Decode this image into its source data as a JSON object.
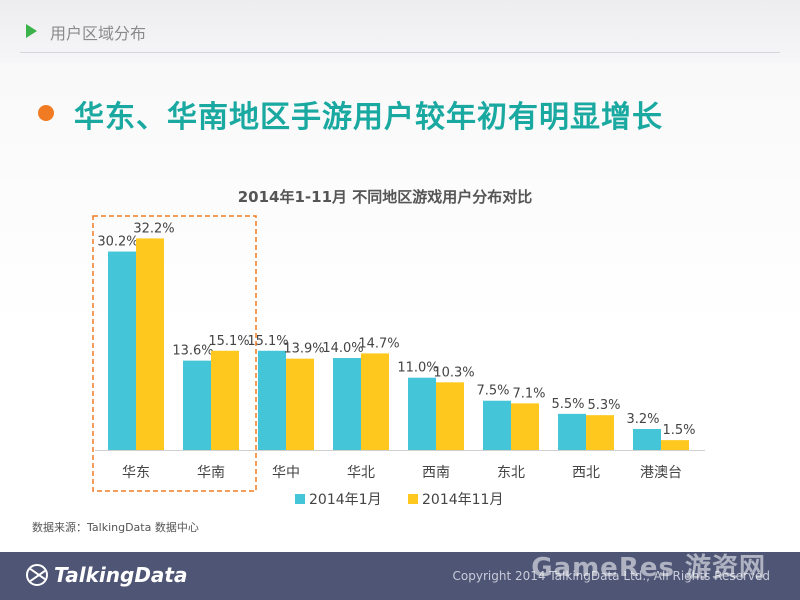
{
  "header": {
    "section_title": "用户区域分布"
  },
  "headline": "华东、华南地区手游用户较年初有明显增长",
  "colors": {
    "series1": "#45c6d8",
    "series2": "#ffc81e",
    "highlight": "#f07b22",
    "headline": "#1aa9a0",
    "footer": "#4e5575"
  },
  "chart_data": {
    "type": "bar",
    "title": "2014年1-11月 不同地区游戏用户分布对比",
    "categories": [
      "华东",
      "华南",
      "华中",
      "华北",
      "西南",
      "东北",
      "西北",
      "港澳台"
    ],
    "series": [
      {
        "name": "2014年1月",
        "values": [
          30.2,
          13.6,
          15.1,
          14.0,
          11.0,
          7.5,
          5.5,
          3.2
        ],
        "labels": [
          "30.2%",
          "13.6%",
          "15.1%",
          "14.0%",
          "11.0%",
          "7.5%",
          "5.5%",
          "3.2%"
        ]
      },
      {
        "name": "2014年11月",
        "values": [
          32.2,
          15.1,
          13.9,
          14.7,
          10.3,
          7.1,
          5.3,
          1.5
        ],
        "labels": [
          "32.2%",
          "15.1%",
          "13.9%",
          "14.7%",
          "10.3%",
          "7.1%",
          "5.3%",
          "1.5%"
        ]
      }
    ],
    "ylim": [
      0,
      35
    ],
    "highlighted_categories": [
      "华东",
      "华南"
    ],
    "legend_position": "bottom"
  },
  "source_note": "数据来源：TalkingData 数据中心",
  "footer": {
    "logo_text": "TalkingData",
    "copyright": "Copyright 2014 TalkingData Ltd., All Rights Reserved",
    "watermark": "GameRes 游资网"
  }
}
